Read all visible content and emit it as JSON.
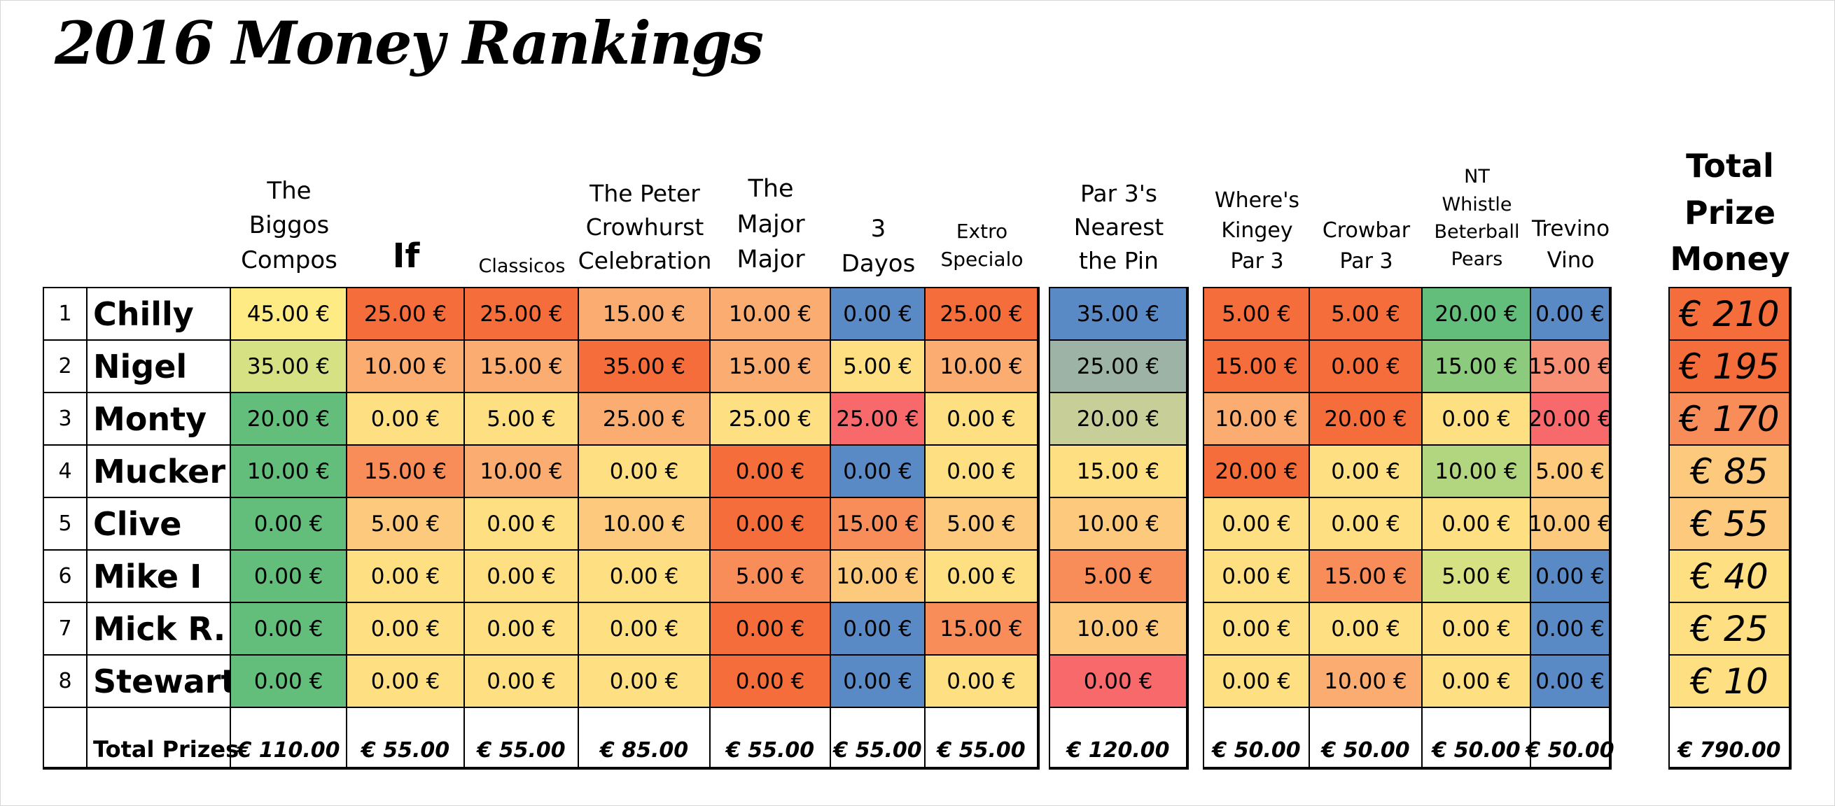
{
  "title": "2016 Money Rankings",
  "colors": {
    "g1": "#63BE7B",
    "g2": "#8CCB7E",
    "g3": "#B2D580",
    "g4": "#D6E183",
    "y0": "#FFEB84",
    "y1": "#FEDF81",
    "o1": "#FDC97D",
    "o2": "#FBAC71",
    "o3": "#F88D5A",
    "o4": "#F46D3A",
    "r1": "#F8696B",
    "r2": "#F79074",
    "b": "#5A8AC6",
    "bg": "#9CB3A5",
    "bgg": "#C8CE97"
  },
  "headers": {
    "biggos": "The\nBiggos\nCompos",
    "if": "If",
    "classicos": "Classicos",
    "peter": "The Peter\nCrowhurst\nCelebration",
    "major": "The\nMajor\nMajor",
    "dayos": "3 Dayos",
    "extro": "Extro\nSpecialo",
    "par3": "Par 3's\nNearest\nthe Pin",
    "kingey": "Where's\nKingey\nPar 3",
    "crowbar": "Crowbar\nPar 3",
    "nt": "NT\nWhistle\nBeterball\nPears",
    "trevino": "Trevino\nVino",
    "total": "Total\nPrize\nMoney"
  },
  "rows": [
    {
      "rank": "1",
      "name": "Chilly",
      "b1": [
        "45.00 €",
        "25.00 €",
        "25.00 €",
        "15.00 €",
        "10.00 €",
        "0.00 €",
        "25.00 €"
      ],
      "b2": [
        "35.00 €"
      ],
      "b3": [
        "5.00 €",
        "5.00 €",
        "20.00 €",
        "0.00 €"
      ],
      "total": "€ 210"
    },
    {
      "rank": "2",
      "name": "Nigel",
      "b1": [
        "35.00 €",
        "10.00 €",
        "15.00 €",
        "35.00 €",
        "15.00 €",
        "5.00 €",
        "10.00 €"
      ],
      "b2": [
        "25.00 €"
      ],
      "b3": [
        "15.00 €",
        "0.00 €",
        "15.00 €",
        "15.00 €"
      ],
      "total": "€ 195"
    },
    {
      "rank": "3",
      "name": "Monty",
      "b1": [
        "20.00 €",
        "0.00 €",
        "5.00 €",
        "25.00 €",
        "25.00 €",
        "25.00 €",
        "0.00 €"
      ],
      "b2": [
        "20.00 €"
      ],
      "b3": [
        "10.00 €",
        "20.00 €",
        "0.00 €",
        "20.00 €"
      ],
      "total": "€ 170"
    },
    {
      "rank": "4",
      "name": "Mucker",
      "b1": [
        "10.00 €",
        "15.00 €",
        "10.00 €",
        "0.00 €",
        "0.00 €",
        "0.00 €",
        "0.00 €"
      ],
      "b2": [
        "15.00 €"
      ],
      "b3": [
        "20.00 €",
        "0.00 €",
        "10.00 €",
        "5.00 €"
      ],
      "total": "€ 85"
    },
    {
      "rank": "5",
      "name": "Clive",
      "b1": [
        "0.00 €",
        "5.00 €",
        "0.00 €",
        "10.00 €",
        "0.00 €",
        "15.00 €",
        "5.00 €"
      ],
      "b2": [
        "10.00 €"
      ],
      "b3": [
        "0.00 €",
        "0.00 €",
        "0.00 €",
        "10.00 €"
      ],
      "total": "€ 55"
    },
    {
      "rank": "6",
      "name": "Mike I",
      "b1": [
        "0.00 €",
        "0.00 €",
        "0.00 €",
        "0.00 €",
        "5.00 €",
        "10.00 €",
        "0.00 €"
      ],
      "b2": [
        "5.00 €"
      ],
      "b3": [
        "0.00 €",
        "15.00 €",
        "5.00 €",
        "0.00 €"
      ],
      "total": "€ 40"
    },
    {
      "rank": "7",
      "name": "Mick R.",
      "b1": [
        "0.00 €",
        "0.00 €",
        "0.00 €",
        "0.00 €",
        "0.00 €",
        "0.00 €",
        "15.00 €"
      ],
      "b2": [
        "10.00 €"
      ],
      "b3": [
        "0.00 €",
        "0.00 €",
        "0.00 €",
        "0.00 €"
      ],
      "total": "€ 25"
    },
    {
      "rank": "8",
      "name": "Stewart",
      "b1": [
        "0.00 €",
        "0.00 €",
        "0.00 €",
        "0.00 €",
        "0.00 €",
        "0.00 €",
        "0.00 €"
      ],
      "b2": [
        "0.00 €"
      ],
      "b3": [
        "0.00 €",
        "10.00 €",
        "0.00 €",
        "0.00 €"
      ],
      "total": "€ 10"
    }
  ],
  "fills": [
    {
      "b1": [
        "y0",
        "o4",
        "o4",
        "o2",
        "o2",
        "b",
        "o4"
      ],
      "b2": [
        "b"
      ],
      "b3": [
        "o4",
        "o4",
        "g1",
        "b"
      ],
      "t": "o4"
    },
    {
      "b1": [
        "g4",
        "o2",
        "o2",
        "o4",
        "o2",
        "y1",
        "o2"
      ],
      "b2": [
        "bg"
      ],
      "b3": [
        "o4",
        "o4",
        "g2",
        "r2"
      ],
      "t": "o4"
    },
    {
      "b1": [
        "g1",
        "y1",
        "y1",
        "o2",
        "y1",
        "r1",
        "y1"
      ],
      "b2": [
        "bgg"
      ],
      "b3": [
        "o2",
        "o4",
        "y1",
        "r1"
      ],
      "t": "o3"
    },
    {
      "b1": [
        "g1",
        "o3",
        "o2",
        "y1",
        "o4",
        "b",
        "y1"
      ],
      "b2": [
        "y1"
      ],
      "b3": [
        "o4",
        "y1",
        "g3",
        "o1"
      ],
      "t": "o1"
    },
    {
      "b1": [
        "g1",
        "o1",
        "y1",
        "o1",
        "o4",
        "o3",
        "o1"
      ],
      "b2": [
        "o1"
      ],
      "b3": [
        "y1",
        "y1",
        "y1",
        "o1"
      ],
      "t": "o1"
    },
    {
      "b1": [
        "g1",
        "y1",
        "y1",
        "y1",
        "o3",
        "o1",
        "y1"
      ],
      "b2": [
        "o3"
      ],
      "b3": [
        "y1",
        "o3",
        "g4",
        "b"
      ],
      "t": "y1"
    },
    {
      "b1": [
        "g1",
        "y1",
        "y1",
        "y1",
        "o4",
        "b",
        "o3"
      ],
      "b2": [
        "o1"
      ],
      "b3": [
        "y1",
        "y1",
        "y1",
        "b"
      ],
      "t": "y1"
    },
    {
      "b1": [
        "g1",
        "y1",
        "y1",
        "y1",
        "o4",
        "b",
        "y1"
      ],
      "b2": [
        "r1"
      ],
      "b3": [
        "y1",
        "o2",
        "y1",
        "b"
      ],
      "t": "y1"
    }
  ],
  "totals_label": "Total Prizes",
  "totals": {
    "b1": [
      "€ 110.00",
      "€ 55.00",
      "€ 55.00",
      "€ 85.00",
      "€ 55.00",
      "€ 55.00",
      "€ 55.00"
    ],
    "b2": [
      "€ 120.00"
    ],
    "b3": [
      "€ 50.00",
      "€ 50.00",
      "€ 50.00",
      "€ 50.00"
    ],
    "grand": "€ 790.00"
  }
}
